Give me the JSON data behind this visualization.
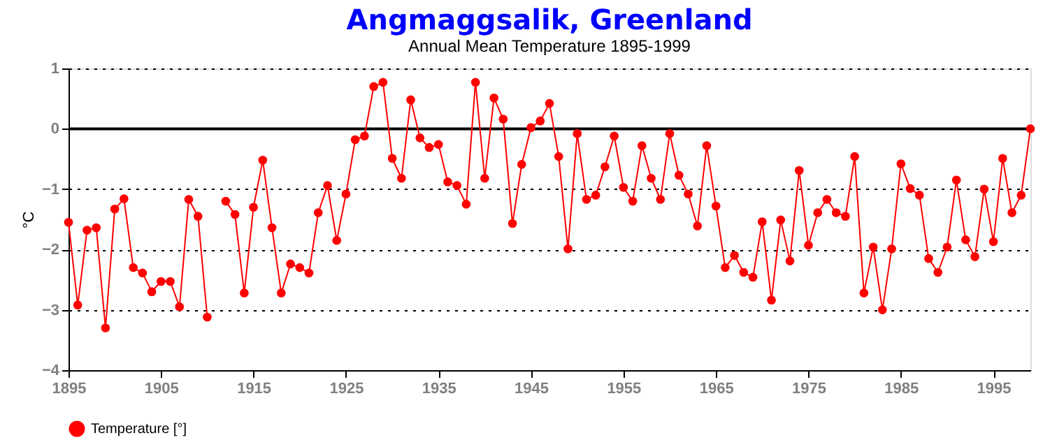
{
  "chart_data": {
    "type": "line",
    "title": "Angmaggsalik, Greenland",
    "subtitle": "Annual Mean Temperature 1895-1999",
    "ylabel": "°C",
    "x": [
      1895,
      1896,
      1897,
      1898,
      1899,
      1900,
      1901,
      1902,
      1903,
      1904,
      1905,
      1906,
      1907,
      1908,
      1909,
      1910,
      1911,
      1912,
      1913,
      1914,
      1915,
      1916,
      1917,
      1918,
      1919,
      1920,
      1921,
      1922,
      1923,
      1924,
      1925,
      1926,
      1927,
      1928,
      1929,
      1930,
      1931,
      1932,
      1933,
      1934,
      1935,
      1936,
      1937,
      1938,
      1939,
      1940,
      1941,
      1942,
      1943,
      1944,
      1945,
      1946,
      1947,
      1948,
      1949,
      1950,
      1951,
      1952,
      1953,
      1954,
      1955,
      1956,
      1957,
      1958,
      1959,
      1960,
      1961,
      1962,
      1963,
      1964,
      1965,
      1966,
      1967,
      1968,
      1969,
      1970,
      1971,
      1972,
      1973,
      1974,
      1975,
      1976,
      1977,
      1978,
      1979,
      1980,
      1981,
      1982,
      1983,
      1984,
      1985,
      1986,
      1987,
      1988,
      1989,
      1990,
      1991,
      1992,
      1993,
      1994,
      1995,
      1996,
      1997,
      1998,
      1999
    ],
    "series": [
      {
        "name": "Temperature [°]",
        "color": "#ff0000",
        "values": [
          -1.55,
          -2.92,
          -1.68,
          -1.64,
          -3.3,
          -1.33,
          -1.16,
          -2.3,
          -2.39,
          -2.7,
          -2.53,
          -2.53,
          -2.95,
          -1.17,
          -1.45,
          -3.12,
          null,
          -1.2,
          -1.42,
          -2.72,
          -1.3,
          -0.52,
          -1.64,
          -2.72,
          -2.24,
          -2.3,
          -2.39,
          -1.39,
          -0.94,
          -1.85,
          -1.08,
          -0.18,
          -0.12,
          0.7,
          0.77,
          -0.49,
          -0.82,
          0.48,
          -0.15,
          -0.31,
          -0.26,
          -0.88,
          -0.94,
          -1.25,
          0.77,
          -0.82,
          0.51,
          0.16,
          -1.57,
          -0.59,
          0.02,
          0.13,
          0.42,
          -0.46,
          -1.99,
          -0.08,
          -1.17,
          -1.1,
          -0.63,
          -0.12,
          -0.97,
          -1.2,
          -0.28,
          -0.82,
          -1.17,
          -0.08,
          -0.77,
          -1.08,
          -1.61,
          -0.28,
          -1.28,
          -2.3,
          -2.1,
          -2.38,
          -2.46,
          -1.54,
          -2.84,
          -1.51,
          -2.19,
          -0.69,
          -1.93,
          -1.39,
          -1.17,
          -1.39,
          -1.45,
          -0.46,
          -2.72,
          -1.96,
          -3.0,
          -1.99,
          -0.58,
          -0.99,
          -1.1,
          -2.15,
          -2.38,
          -1.96,
          -0.85,
          -1.84,
          -2.12,
          -1.0,
          -1.87,
          -0.49,
          -1.39,
          -1.1,
          0.0
        ]
      }
    ],
    "xlim": [
      1895,
      1999
    ],
    "xticks": [
      1895,
      1905,
      1915,
      1925,
      1935,
      1945,
      1955,
      1965,
      1975,
      1985,
      1995
    ],
    "ylim": [
      -4,
      1
    ],
    "yticks": [
      -4,
      -3,
      -2,
      -1,
      0,
      1
    ],
    "ref_lines": [
      {
        "axis": "y",
        "value": 0,
        "color": "#000000"
      }
    ],
    "grid": "y",
    "legend": "bottom",
    "marker": "circle",
    "line_style": "solid"
  }
}
